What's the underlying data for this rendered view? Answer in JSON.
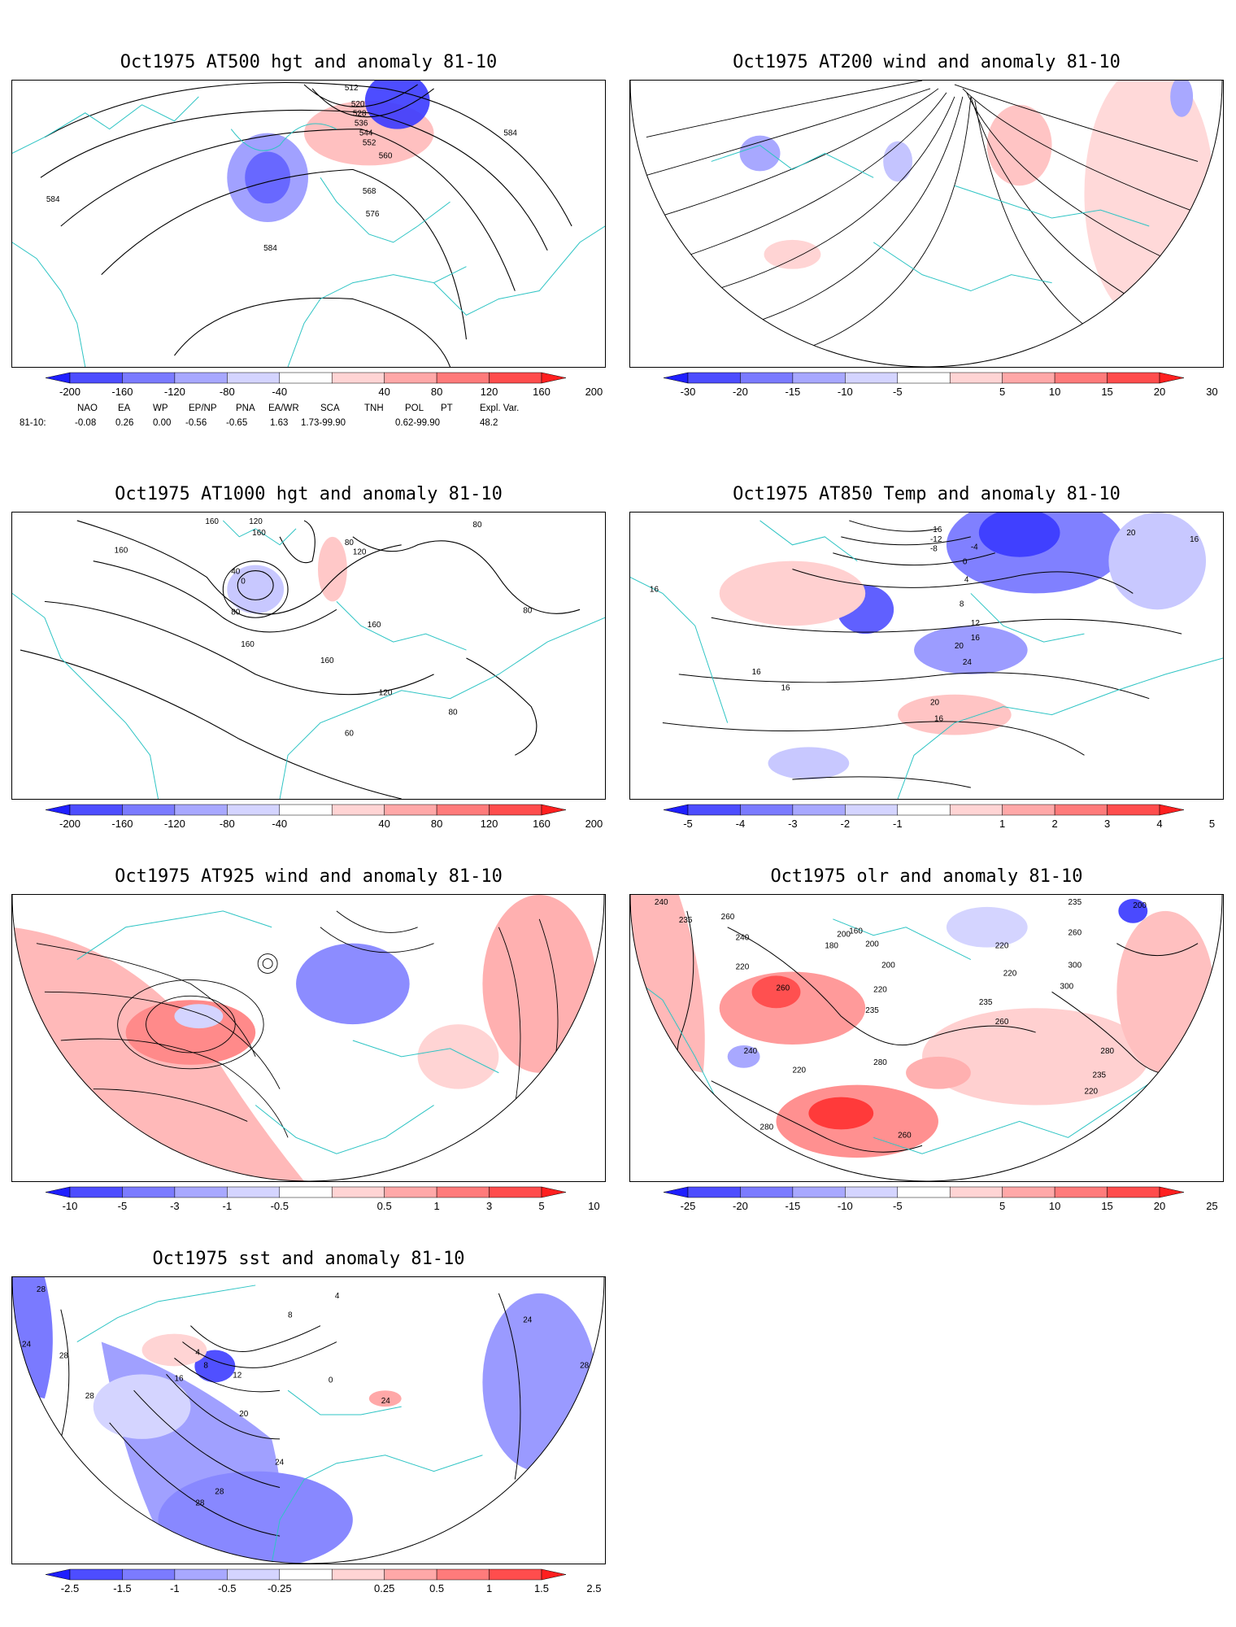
{
  "panels": {
    "p500": {
      "title": "Oct1975 AT500 hgt and anomaly 81-10",
      "contour_labels": [
        "512",
        "520",
        "528",
        "536",
        "544",
        "552",
        "560",
        "568",
        "576",
        "584",
        "584",
        "584"
      ]
    },
    "p200": {
      "title": "Oct1975 AT200 wind and anomaly 81-10"
    },
    "p1000": {
      "title": "Oct1975 AT1000 hgt and anomaly 81-10",
      "contour_labels": [
        "160",
        "120",
        "160",
        "80",
        "40",
        "0",
        "80",
        "120",
        "160",
        "80",
        "160",
        "160",
        "120",
        "80",
        "80",
        "60",
        "160"
      ]
    },
    "p850": {
      "title": "Oct1975 AT850 Temp and anomaly 81-10",
      "contour_labels": [
        "-16",
        "-12",
        "-8",
        "-4",
        "0",
        "4",
        "8",
        "12",
        "16",
        "20",
        "24",
        "20",
        "16",
        "16",
        "16",
        "16",
        "20",
        "16"
      ]
    },
    "p925": {
      "title": "Oct1975 AT925 wind and anomaly 81-10"
    },
    "polr": {
      "title": "Oct1975 olr and anomaly 81-10",
      "contour_labels": [
        "240",
        "235",
        "260",
        "200",
        "180",
        "160",
        "200",
        "220",
        "260",
        "235",
        "220",
        "240",
        "235",
        "300",
        "280",
        "260",
        "235",
        "220",
        "240",
        "280",
        "260",
        "220",
        "280",
        "220",
        "200",
        "235",
        "260",
        "300",
        "220",
        "200"
      ]
    },
    "psst": {
      "title": "Oct1975 sst and anomaly 81-10",
      "contour_labels": [
        "28",
        "24",
        "28",
        "28",
        "4",
        "8",
        "12",
        "16",
        "20",
        "24",
        "28",
        "28",
        "28",
        "24",
        "24",
        "0",
        "4",
        "8"
      ]
    }
  },
  "colorbars": {
    "p500": [
      "-200",
      "-160",
      "-120",
      "-80",
      "-40",
      "40",
      "80",
      "120",
      "160",
      "200"
    ],
    "p200": [
      "-30",
      "-20",
      "-15",
      "-10",
      "-5",
      "5",
      "10",
      "15",
      "20",
      "30"
    ],
    "p1000": [
      "-200",
      "-160",
      "-120",
      "-80",
      "-40",
      "40",
      "80",
      "120",
      "160",
      "200"
    ],
    "p850": [
      "-5",
      "-4",
      "-3",
      "-2",
      "-1",
      "1",
      "2",
      "3",
      "4",
      "5"
    ],
    "p925": [
      "-10",
      "-5",
      "-3",
      "-1",
      "-0.5",
      "0.5",
      "1",
      "3",
      "5",
      "10"
    ],
    "polr": [
      "-25",
      "-20",
      "-15",
      "-10",
      "-5",
      "5",
      "10",
      "15",
      "20",
      "25"
    ],
    "psst": [
      "-2.5",
      "-1.5",
      "-1",
      "-0.5",
      "-0.25",
      "0.25",
      "0.5",
      "1",
      "1.5",
      "2.5"
    ]
  },
  "colorbar_colors": [
    "#1f1fff",
    "#4d4dff",
    "#7b7bff",
    "#a8a8ff",
    "#d4d4ff",
    "#ffffff",
    "#ffd4d4",
    "#ffa8a8",
    "#ff7b7b",
    "#ff4d4d",
    "#ff1f1f"
  ],
  "teleconnections": {
    "headers": [
      "NAO",
      "EA",
      "WP",
      "EP/NP",
      "PNA",
      "EA/WR",
      "SCA",
      "TNH",
      "POL",
      "PT",
      "Expl. Var."
    ],
    "row_label": "81-10:",
    "values": [
      "-0.08",
      "0.26",
      "0.00",
      "-0.56",
      "-0.65",
      "1.63",
      "1.73-99.90",
      "0.62-99.90",
      "48.2"
    ]
  },
  "colors": {
    "coastline": "#2ec4c4",
    "anom_pos": "#ff6b6b",
    "anom_neg": "#5a5aff"
  }
}
